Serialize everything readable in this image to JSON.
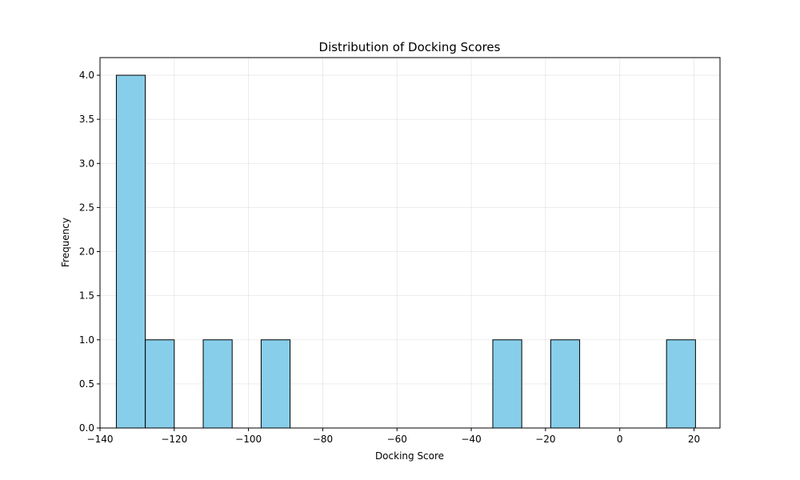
{
  "chart_data": {
    "type": "bar",
    "title": "Distribution of Docking Scores",
    "xlabel": "Docking Score",
    "ylabel": "Frequency",
    "xlim": [
      -140,
      27
    ],
    "ylim": [
      0,
      4.2
    ],
    "grid": true,
    "bar_color": "#87CEEB",
    "edge_color": "#000000",
    "x_ticks": [
      {
        "value": -140,
        "label": "−140"
      },
      {
        "value": -120,
        "label": "−120"
      },
      {
        "value": -100,
        "label": "−100"
      },
      {
        "value": -80,
        "label": "−80"
      },
      {
        "value": -60,
        "label": "−60"
      },
      {
        "value": -40,
        "label": "−40"
      },
      {
        "value": -20,
        "label": "−20"
      },
      {
        "value": 0,
        "label": "0"
      },
      {
        "value": 20,
        "label": "20"
      }
    ],
    "y_ticks": [
      {
        "value": 0,
        "label": "0.0"
      },
      {
        "value": 0.5,
        "label": "0.5"
      },
      {
        "value": 1,
        "label": "1.0"
      },
      {
        "value": 1.5,
        "label": "1.5"
      },
      {
        "value": 2,
        "label": "2.0"
      },
      {
        "value": 2.5,
        "label": "2.5"
      },
      {
        "value": 3,
        "label": "3.0"
      },
      {
        "value": 3.5,
        "label": "3.5"
      },
      {
        "value": 4,
        "label": "4.0"
      }
    ],
    "bins": [
      {
        "x0": -135.6,
        "x1": -127.8,
        "count": 4
      },
      {
        "x0": -127.8,
        "x1": -120.0,
        "count": 1
      },
      {
        "x0": -120.0,
        "x1": -112.2,
        "count": 0
      },
      {
        "x0": -112.2,
        "x1": -104.4,
        "count": 1
      },
      {
        "x0": -104.4,
        "x1": -96.6,
        "count": 0
      },
      {
        "x0": -96.6,
        "x1": -88.8,
        "count": 1
      },
      {
        "x0": -88.8,
        "x1": -81.0,
        "count": 0
      },
      {
        "x0": -81.0,
        "x1": -73.2,
        "count": 0
      },
      {
        "x0": -73.2,
        "x1": -65.4,
        "count": 0
      },
      {
        "x0": -65.4,
        "x1": -57.6,
        "count": 0
      },
      {
        "x0": -57.6,
        "x1": -49.8,
        "count": 0
      },
      {
        "x0": -49.8,
        "x1": -42.0,
        "count": 0
      },
      {
        "x0": -42.0,
        "x1": -34.2,
        "count": 0
      },
      {
        "x0": -34.2,
        "x1": -26.4,
        "count": 1
      },
      {
        "x0": -26.4,
        "x1": -18.6,
        "count": 0
      },
      {
        "x0": -18.6,
        "x1": -10.8,
        "count": 1
      },
      {
        "x0": -10.8,
        "x1": -3.0,
        "count": 0
      },
      {
        "x0": -3.0,
        "x1": 4.8,
        "count": 0
      },
      {
        "x0": 4.8,
        "x1": 12.6,
        "count": 0
      },
      {
        "x0": 12.6,
        "x1": 20.4,
        "count": 1
      }
    ]
  }
}
